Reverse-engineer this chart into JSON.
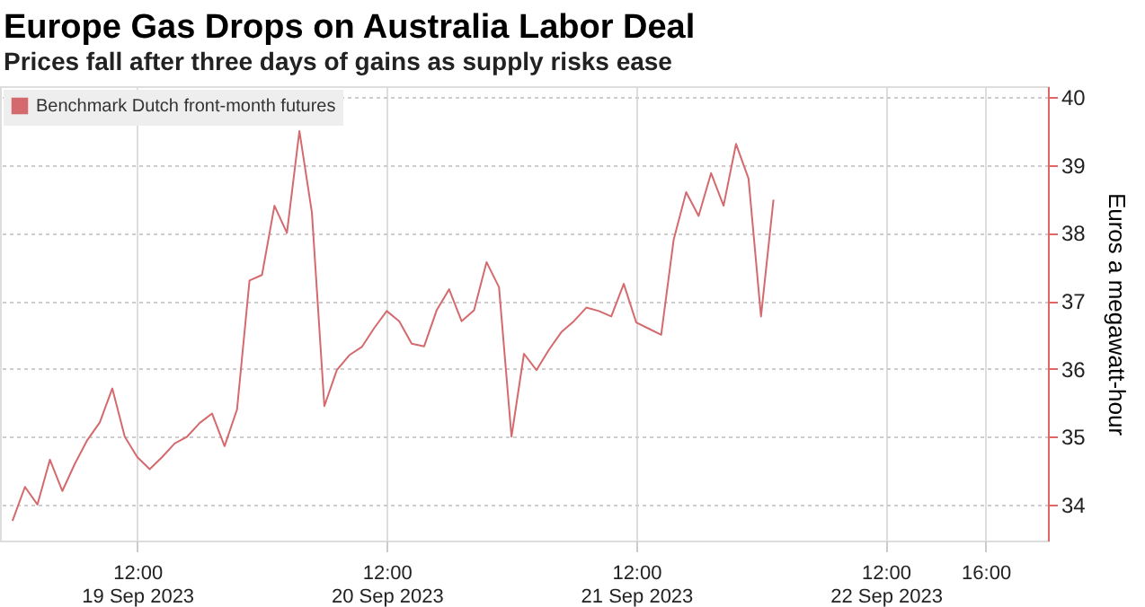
{
  "chart_data": {
    "type": "line",
    "title": "Europe Gas Drops on Australia Labor Deal",
    "subtitle": "Prices fall after three days of gains as supply risks ease",
    "ylabel": "Euros a megawatt-hour",
    "ylim": [
      33.47,
      40.16
    ],
    "yticks": [
      34,
      35,
      36,
      37,
      38,
      39,
      40
    ],
    "categories": [
      null,
      null,
      null,
      null,
      null,
      null,
      null,
      null,
      null,
      null,
      "12:00\n19 Sep 2023",
      null,
      null,
      null,
      null,
      null,
      null,
      null,
      null,
      null,
      null,
      null,
      null,
      null,
      null,
      null,
      null,
      null,
      null,
      null,
      "12:00\n20 Sep 2023",
      null,
      null,
      null,
      null,
      null,
      null,
      null,
      null,
      null,
      null,
      null,
      null,
      null,
      null,
      null,
      null,
      null,
      null,
      null,
      "12:00\n21 Sep 2023",
      null,
      null,
      null,
      null,
      null,
      null,
      null,
      null,
      null,
      null,
      null,
      null,
      null,
      null,
      null,
      null,
      null,
      null,
      null,
      "12:00\n22 Sep 2023",
      null,
      null,
      null,
      null,
      null,
      null,
      null,
      "16:00",
      null,
      null,
      null,
      null
    ],
    "grid": true,
    "legend": "top left",
    "marker": "none",
    "line_style": "solid",
    "series": [
      {
        "name": "Benchmark Dutch front-month futures",
        "color": "#d46a6e",
        "values": [
          33.76,
          34.26,
          34.0,
          34.66,
          34.2,
          34.6,
          34.95,
          35.21,
          35.71,
          35.0,
          34.7,
          34.52,
          34.7,
          34.9,
          35.0,
          35.2,
          35.34,
          34.86,
          35.4,
          37.3,
          37.38,
          38.4,
          38.0,
          39.5,
          38.3,
          35.45,
          35.98,
          36.2,
          36.32,
          36.6,
          36.85,
          36.7,
          36.37,
          36.33,
          36.86,
          37.17,
          36.7,
          36.86,
          37.57,
          37.2,
          35.0,
          36.22,
          35.98,
          36.28,
          36.54,
          36.7,
          36.9,
          36.85,
          36.77,
          37.25,
          36.68,
          36.59,
          36.5,
          37.9,
          38.6,
          38.25,
          38.88,
          38.4,
          39.31,
          38.8,
          36.77,
          38.49,
          null,
          null,
          null,
          null,
          null,
          null,
          null,
          null,
          null,
          null,
          null,
          null,
          null,
          null,
          null,
          null,
          null,
          null,
          null,
          null,
          null
        ]
      }
    ]
  }
}
